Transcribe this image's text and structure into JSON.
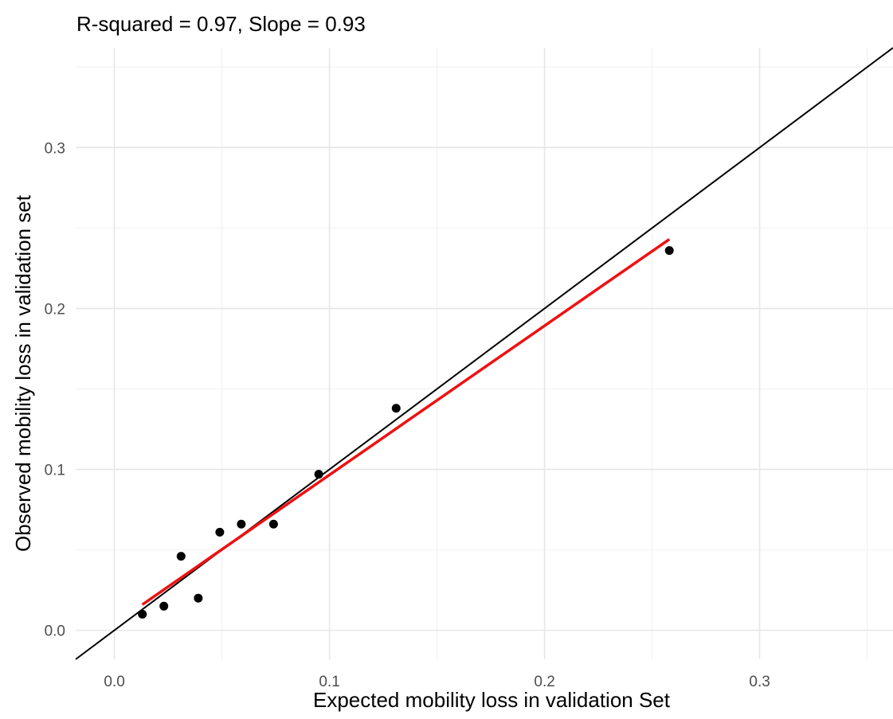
{
  "chart_data": {
    "type": "scatter",
    "title": "R-squared = 0.97, Slope = 0.93",
    "xlabel": "Expected mobility loss in validation Set",
    "ylabel": "Observed mobility loss in validation set",
    "xlim": [
      -0.018,
      0.362
    ],
    "ylim": [
      -0.018,
      0.362
    ],
    "x_ticks": [
      0.0,
      0.1,
      0.2,
      0.3
    ],
    "x_tick_labels": [
      "0.0",
      "0.1",
      "0.2",
      "0.3"
    ],
    "y_ticks": [
      0.0,
      0.1,
      0.2,
      0.3
    ],
    "y_tick_labels": [
      "0.0",
      "0.1",
      "0.2",
      "0.3"
    ],
    "grid": true,
    "points": [
      {
        "x": 0.013,
        "y": 0.01
      },
      {
        "x": 0.023,
        "y": 0.015
      },
      {
        "x": 0.031,
        "y": 0.046
      },
      {
        "x": 0.039,
        "y": 0.02
      },
      {
        "x": 0.049,
        "y": 0.061
      },
      {
        "x": 0.059,
        "y": 0.066
      },
      {
        "x": 0.074,
        "y": 0.066
      },
      {
        "x": 0.095,
        "y": 0.097
      },
      {
        "x": 0.131,
        "y": 0.138
      },
      {
        "x": 0.258,
        "y": 0.236
      }
    ],
    "reference_line": {
      "from": [
        -0.018,
        -0.018
      ],
      "to": [
        0.362,
        0.362
      ],
      "color": "#000000"
    },
    "fit_line": {
      "from": [
        0.013,
        0.016
      ],
      "to": [
        0.258,
        0.243
      ],
      "color": "#ee1111"
    }
  }
}
